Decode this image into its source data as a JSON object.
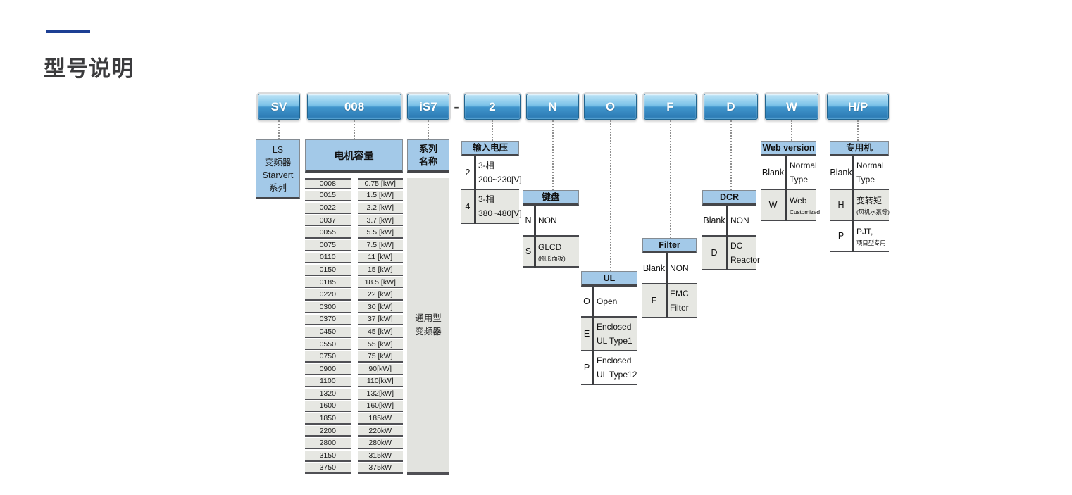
{
  "page": {
    "title": "型号说明"
  },
  "model_code": {
    "separator": "-",
    "segments": [
      {
        "label": "SV"
      },
      {
        "label": "008"
      },
      {
        "label": "iS7"
      },
      {
        "label": "2"
      },
      {
        "label": "N"
      },
      {
        "label": "O"
      },
      {
        "label": "F"
      },
      {
        "label": "D"
      },
      {
        "label": "W"
      },
      {
        "label": "H/P"
      }
    ]
  },
  "series_box": {
    "lines": [
      "LS",
      "变频器",
      "Starvert",
      "系列"
    ]
  },
  "motor_capacity": {
    "header": "电机容量",
    "rows": [
      {
        "code": "0008",
        "value": "0.75 [kW]"
      },
      {
        "code": "0015",
        "value": "1.5 [kW]"
      },
      {
        "code": "0022",
        "value": "2.2 [kW]"
      },
      {
        "code": "0037",
        "value": "3.7 [kW]"
      },
      {
        "code": "0055",
        "value": "5.5 [kW]"
      },
      {
        "code": "0075",
        "value": "7.5 [kW]"
      },
      {
        "code": "0110",
        "value": "11 [kW]"
      },
      {
        "code": "0150",
        "value": "15 [kW]"
      },
      {
        "code": "0185",
        "value": "18.5 [kW]"
      },
      {
        "code": "0220",
        "value": "22 [kW]"
      },
      {
        "code": "0300",
        "value": "30 [kW]"
      },
      {
        "code": "0370",
        "value": "37 [kW]"
      },
      {
        "code": "0450",
        "value": "45 [kW]"
      },
      {
        "code": "0550",
        "value": "55 [kW]"
      },
      {
        "code": "0750",
        "value": "75 [kW]"
      },
      {
        "code": "0900",
        "value": "90[kW]"
      },
      {
        "code": "1100",
        "value": "110[kW]"
      },
      {
        "code": "1320",
        "value": "132[kW]"
      },
      {
        "code": "1600",
        "value": "160[kW]"
      },
      {
        "code": "1850",
        "value": "185kW"
      },
      {
        "code": "2200",
        "value": "220kW"
      },
      {
        "code": "2800",
        "value": "280kW"
      },
      {
        "code": "3150",
        "value": "315kW"
      },
      {
        "code": "3750",
        "value": "375kW"
      }
    ]
  },
  "series_name": {
    "header_lines": [
      "系列",
      "名称"
    ],
    "value_lines": [
      "通用型",
      "变频器"
    ]
  },
  "sections": {
    "input_voltage": {
      "header": "输入电压",
      "options": [
        {
          "code": "2",
          "desc": [
            "3-相",
            "200~230[V]"
          ]
        },
        {
          "code": "4",
          "desc": [
            "3-相",
            "380~480[V]"
          ]
        }
      ]
    },
    "keypad": {
      "header": "键盘",
      "options": [
        {
          "code": "N",
          "desc": [
            "NON"
          ]
        },
        {
          "code": "S",
          "desc": [
            "GLCD",
            "(图形面板)"
          ]
        }
      ]
    },
    "ul": {
      "header": "UL",
      "options": [
        {
          "code": "O",
          "desc": [
            "Open"
          ]
        },
        {
          "code": "E",
          "desc": [
            "Enclosed",
            "UL Type1"
          ]
        },
        {
          "code": "P",
          "desc": [
            "Enclosed",
            "UL Type12"
          ]
        }
      ]
    },
    "filter": {
      "header": "Filter",
      "options": [
        {
          "code": "Blank",
          "desc": [
            "NON"
          ]
        },
        {
          "code": "F",
          "desc": [
            "EMC",
            "Filter"
          ]
        }
      ]
    },
    "dcr": {
      "header": "DCR",
      "options": [
        {
          "code": "Blank",
          "desc": [
            "NON"
          ]
        },
        {
          "code": "D",
          "desc": [
            "DC",
            "Reactor"
          ]
        }
      ]
    },
    "web_version": {
      "header": "Web version",
      "options": [
        {
          "code": "Blank",
          "desc": [
            "Normal",
            "Type"
          ]
        },
        {
          "code": "W",
          "desc": [
            "Web",
            "Customized"
          ]
        }
      ]
    },
    "dedicated": {
      "header": "专用机",
      "options": [
        {
          "code": "Blank",
          "desc": [
            "Normal",
            "Type"
          ]
        },
        {
          "code": "H",
          "desc": [
            "变转矩",
            "(风机水泵等)"
          ]
        },
        {
          "code": "P",
          "desc": [
            "PJT,",
            "项目型专用"
          ]
        }
      ]
    }
  },
  "colors": {
    "title_accent": "#1d3f94",
    "header_fill": "#a3c9e8",
    "button_fill_top": "#bfe5f7",
    "button_fill_bottom": "#2e7db6",
    "row_gray": "#e6e7e2",
    "line_dark": "#47484c",
    "text": "#1a1a1a"
  }
}
